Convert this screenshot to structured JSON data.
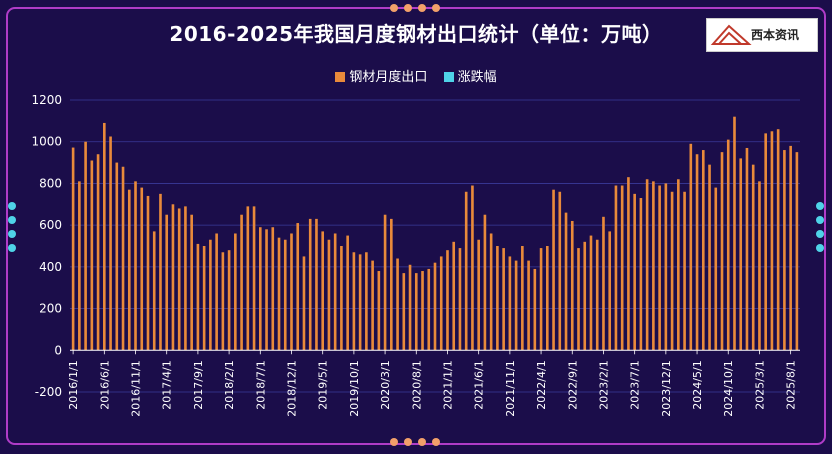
{
  "title": "2016-2025年我国月度钢材出口统计（单位：万吨）",
  "logo_text": "西本资讯",
  "colors": {
    "background": "#1b0d4a",
    "export": "#e98a3b",
    "change": "#4fd3e8",
    "frame": "#b03cc8",
    "dots": "#f2a06a"
  },
  "legend": [
    {
      "label": "钢材月度出口",
      "color": "#e98a3b"
    },
    {
      "label": "涨跌幅",
      "color": "#4fd3e8"
    }
  ],
  "chart_data": {
    "type": "bar",
    "title": "2016-2025年我国月度钢材出口统计（单位：万吨）",
    "ylim": [
      -200,
      1200
    ],
    "yticks": [
      -200,
      0,
      200,
      400,
      600,
      800,
      1000,
      1200
    ],
    "x_tick_labels": [
      "2016/1/1",
      "2016/6/1",
      "2016/11/1",
      "2017/4/1",
      "2017/9/1",
      "2018/2/1",
      "2018/7/1",
      "2018/12/1",
      "2019/5/1",
      "2019/10/1",
      "2020/3/1",
      "2020/8/1",
      "2021/1/1",
      "2021/6/1",
      "2021/11/1",
      "2022/4/1",
      "2022/9/1",
      "2023/2/1",
      "2023/7/1",
      "2023/12/1",
      "2024/5/1",
      "2024/10/1",
      "2025/3/1",
      "2025/8/1"
    ],
    "series": [
      {
        "name": "钢材月度出口",
        "values": [
          972,
          810,
          1000,
          910,
          940,
          1090,
          1025,
          900,
          880,
          770,
          810,
          780,
          740,
          570,
          750,
          650,
          700,
          680,
          690,
          650,
          510,
          500,
          530,
          560,
          470,
          480,
          560,
          650,
          690,
          690,
          590,
          580,
          590,
          540,
          530,
          560,
          610,
          450,
          630,
          630,
          570,
          530,
          560,
          500,
          550,
          470,
          460,
          470,
          430,
          380,
          650,
          630,
          440,
          370,
          410,
          370,
          380,
          390,
          420,
          450,
          480,
          520,
          490,
          760,
          790,
          530,
          650,
          560,
          500,
          490,
          450,
          430,
          500,
          430,
          390,
          490,
          500,
          770,
          760,
          660,
          620,
          490,
          520,
          550,
          530,
          640,
          570,
          790,
          790,
          830,
          750,
          730,
          820,
          810,
          790,
          800,
          760,
          820,
          760,
          990,
          940,
          960,
          890,
          780,
          950,
          1010,
          1120,
          920,
          970,
          890,
          810,
          1040,
          1050,
          1060,
          960,
          980,
          950
        ]
      }
    ]
  }
}
